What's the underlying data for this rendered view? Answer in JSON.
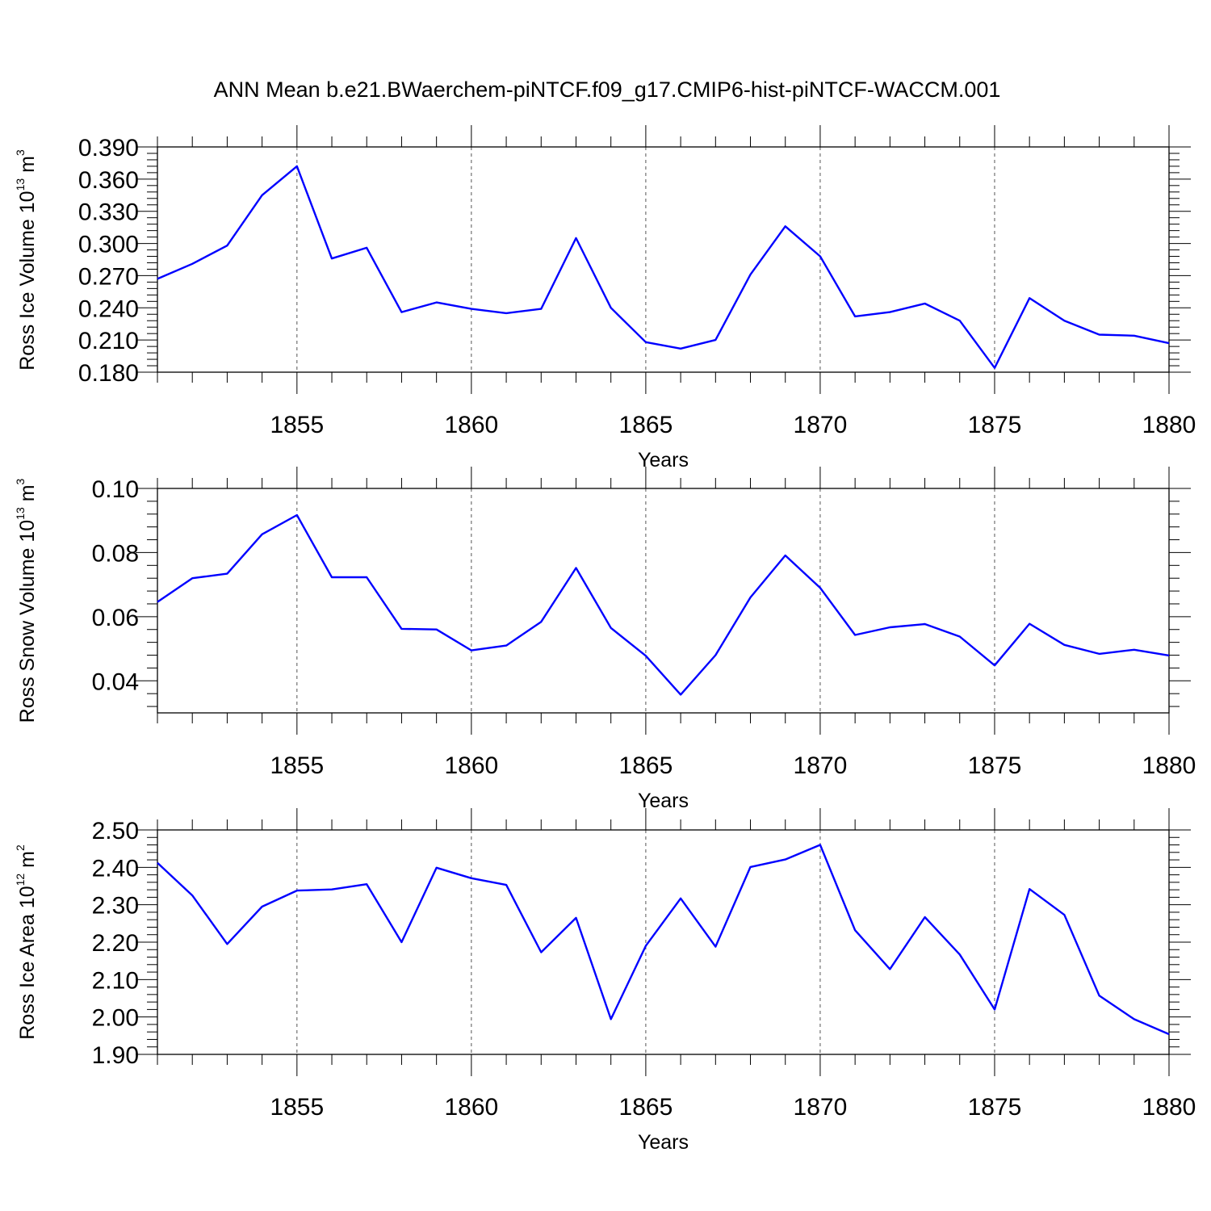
{
  "title": "ANN Mean b.e21.BWaerchem-piNTCF.f09_g17.CMIP6-hist-piNTCF-WACCM.001",
  "chart_data": [
    {
      "type": "line",
      "ylabel_main": "Ross Ice Volume 10",
      "ylabel_exp": "13",
      "ylabel_unit": " m",
      "ylabel_unit_exp": "3",
      "xlabel": "Years",
      "xlim": [
        1851,
        1880
      ],
      "ylim": [
        0.18,
        0.39
      ],
      "yticks": [
        "0.180",
        "0.210",
        "0.240",
        "0.270",
        "0.300",
        "0.330",
        "0.360",
        "0.390"
      ],
      "xticks": [
        "1855",
        "1860",
        "1865",
        "1870",
        "1875",
        "1880"
      ],
      "line_color": "#0000ff",
      "x": [
        1851,
        1852,
        1853,
        1854,
        1855,
        1856,
        1857,
        1858,
        1859,
        1860,
        1861,
        1862,
        1863,
        1864,
        1865,
        1866,
        1867,
        1868,
        1869,
        1870,
        1871,
        1872,
        1873,
        1874,
        1875,
        1876,
        1877,
        1878,
        1879,
        1880
      ],
      "values": [
        0.267,
        0.281,
        0.298,
        0.345,
        0.372,
        0.286,
        0.296,
        0.236,
        0.245,
        0.239,
        0.235,
        0.239,
        0.305,
        0.24,
        0.208,
        0.202,
        0.21,
        0.271,
        0.316,
        0.288,
        0.232,
        0.236,
        0.244,
        0.228,
        0.184,
        0.249,
        0.228,
        0.215,
        0.214,
        0.207
      ]
    },
    {
      "type": "line",
      "ylabel_main": "Ross Snow Volume 10",
      "ylabel_exp": "13",
      "ylabel_unit": " m",
      "ylabel_unit_exp": "3",
      "xlabel": "Years",
      "xlim": [
        1851,
        1880
      ],
      "ylim": [
        0.03,
        0.1
      ],
      "yticks": [
        "0.04",
        "0.06",
        "0.08",
        "0.10"
      ],
      "xticks": [
        "1855",
        "1860",
        "1865",
        "1870",
        "1875",
        "1880"
      ],
      "line_color": "#0000ff",
      "x": [
        1851,
        1852,
        1853,
        1854,
        1855,
        1856,
        1857,
        1858,
        1859,
        1860,
        1861,
        1862,
        1863,
        1864,
        1865,
        1866,
        1867,
        1868,
        1869,
        1870,
        1871,
        1872,
        1873,
        1874,
        1875,
        1876,
        1877,
        1878,
        1879,
        1880
      ],
      "values": [
        0.0646,
        0.072,
        0.0734,
        0.0857,
        0.0917,
        0.0723,
        0.0723,
        0.0562,
        0.056,
        0.0495,
        0.051,
        0.0584,
        0.0752,
        0.0565,
        0.0478,
        0.0357,
        0.048,
        0.066,
        0.0791,
        0.069,
        0.0543,
        0.0567,
        0.0577,
        0.0538,
        0.0448,
        0.0578,
        0.0512,
        0.0484,
        0.0497,
        0.0479
      ]
    },
    {
      "type": "line",
      "ylabel_main": "Ross Ice Area 10",
      "ylabel_exp": "12",
      "ylabel_unit": " m",
      "ylabel_unit_exp": "2",
      "xlabel": "Years",
      "xlim": [
        1851,
        1880
      ],
      "ylim": [
        1.9,
        2.5
      ],
      "yticks": [
        "1.90",
        "2.00",
        "2.10",
        "2.20",
        "2.30",
        "2.40",
        "2.50"
      ],
      "xticks": [
        "1855",
        "1860",
        "1865",
        "1870",
        "1875",
        "1880"
      ],
      "line_color": "#0000ff",
      "x": [
        1851,
        1852,
        1853,
        1854,
        1855,
        1856,
        1857,
        1858,
        1859,
        1860,
        1861,
        1862,
        1863,
        1864,
        1865,
        1866,
        1867,
        1868,
        1869,
        1870,
        1871,
        1872,
        1873,
        1874,
        1875,
        1876,
        1877,
        1878,
        1879,
        1880
      ],
      "values": [
        2.412,
        2.325,
        2.195,
        2.295,
        2.338,
        2.341,
        2.355,
        2.2,
        2.399,
        2.371,
        2.353,
        2.173,
        2.265,
        1.994,
        2.19,
        2.317,
        2.188,
        2.401,
        2.421,
        2.46,
        2.232,
        2.128,
        2.267,
        2.167,
        2.02,
        2.342,
        2.273,
        2.057,
        1.994,
        1.954
      ]
    }
  ]
}
